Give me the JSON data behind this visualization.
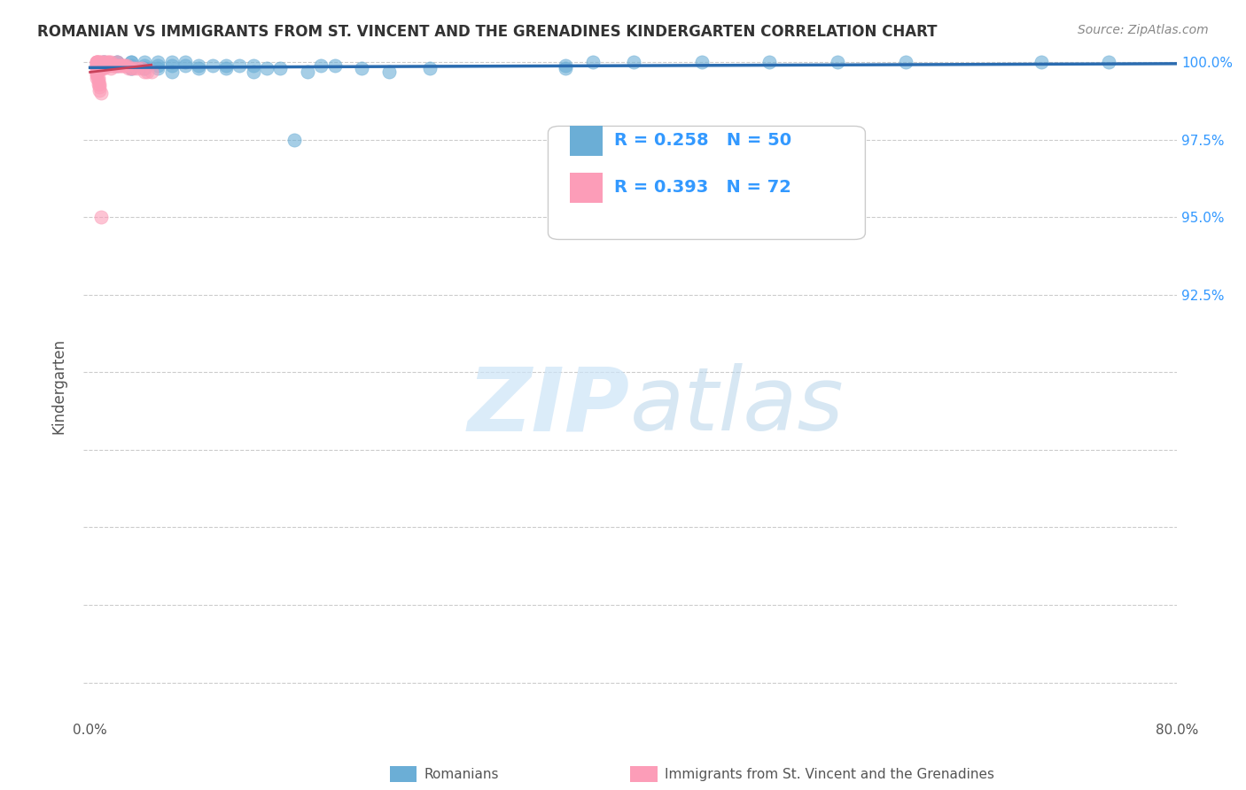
{
  "title": "ROMANIAN VS IMMIGRANTS FROM ST. VINCENT AND THE GRENADINES KINDERGARTEN CORRELATION CHART",
  "source": "Source: ZipAtlas.com",
  "xlabel": "",
  "ylabel": "Kindergarten",
  "xlim": [
    -0.005,
    0.8
  ],
  "ylim": [
    0.788,
    1.003
  ],
  "xticks": [
    0.0,
    0.1,
    0.2,
    0.3,
    0.4,
    0.5,
    0.6,
    0.7,
    0.8
  ],
  "xticklabels": [
    "0.0%",
    "",
    "",
    "",
    "",
    "",
    "",
    "",
    "80.0%"
  ],
  "yticks": [
    0.8,
    0.825,
    0.85,
    0.875,
    0.9,
    0.925,
    0.95,
    0.975,
    1.0
  ],
  "yticklabels": [
    "",
    "",
    "",
    "",
    "",
    "92.5%",
    "95.0%",
    "97.5%",
    "100.0%"
  ],
  "legend_label_blue": "Romanians",
  "legend_label_pink": "Immigrants from St. Vincent and the Grenadines",
  "R_blue": 0.258,
  "N_blue": 50,
  "R_pink": 0.393,
  "N_pink": 72,
  "blue_color": "#6baed6",
  "pink_color": "#fc9db8",
  "blue_line_color": "#2b6cb0",
  "pink_line_color": "#c9415a",
  "grid_color": "#cccccc",
  "background_color": "#ffffff",
  "watermark_zip": "ZIP",
  "watermark_atlas": "atlas",
  "blue_scatter_x": [
    0.02,
    0.02,
    0.02,
    0.03,
    0.03,
    0.03,
    0.04,
    0.04,
    0.05,
    0.05,
    0.05,
    0.06,
    0.06,
    0.06,
    0.07,
    0.07,
    0.08,
    0.08,
    0.09,
    0.1,
    0.1,
    0.11,
    0.12,
    0.12,
    0.13,
    0.14,
    0.15,
    0.16,
    0.17,
    0.18,
    0.2,
    0.22,
    0.25,
    0.01,
    0.01,
    0.01,
    0.03,
    0.03,
    0.04,
    0.04,
    0.35,
    0.35,
    0.37,
    0.4,
    0.45,
    0.5,
    0.55,
    0.6,
    0.7,
    0.75
  ],
  "blue_scatter_y": [
    1.0,
    1.0,
    0.999,
    1.0,
    0.999,
    0.998,
    1.0,
    0.998,
    1.0,
    0.999,
    0.998,
    1.0,
    0.999,
    0.997,
    1.0,
    0.999,
    0.999,
    0.998,
    0.999,
    0.999,
    0.998,
    0.999,
    0.999,
    0.997,
    0.998,
    0.998,
    0.975,
    0.997,
    0.999,
    0.999,
    0.998,
    0.997,
    0.998,
    1.0,
    1.0,
    0.999,
    1.0,
    0.998,
    0.999,
    0.998,
    0.999,
    0.998,
    1.0,
    1.0,
    1.0,
    1.0,
    1.0,
    1.0,
    1.0,
    1.0
  ],
  "pink_scatter_x": [
    0.005,
    0.005,
    0.005,
    0.005,
    0.005,
    0.005,
    0.005,
    0.005,
    0.005,
    0.005,
    0.006,
    0.006,
    0.006,
    0.006,
    0.006,
    0.007,
    0.007,
    0.007,
    0.007,
    0.008,
    0.008,
    0.008,
    0.009,
    0.009,
    0.009,
    0.01,
    0.01,
    0.01,
    0.011,
    0.011,
    0.012,
    0.012,
    0.013,
    0.013,
    0.014,
    0.014,
    0.015,
    0.015,
    0.016,
    0.017,
    0.018,
    0.019,
    0.02,
    0.02,
    0.021,
    0.022,
    0.023,
    0.024,
    0.025,
    0.026,
    0.027,
    0.028,
    0.03,
    0.032,
    0.035,
    0.038,
    0.04,
    0.042,
    0.045,
    0.005,
    0.005,
    0.005,
    0.005,
    0.005,
    0.006,
    0.006,
    0.006,
    0.007,
    0.007,
    0.007,
    0.008,
    0.008
  ],
  "pink_scatter_y": [
    1.0,
    1.0,
    1.0,
    1.0,
    0.999,
    0.999,
    0.999,
    0.999,
    0.998,
    0.998,
    1.0,
    1.0,
    0.999,
    0.999,
    0.998,
    1.0,
    0.999,
    0.999,
    0.998,
    1.0,
    0.999,
    0.998,
    1.0,
    0.999,
    0.998,
    1.0,
    0.999,
    0.998,
    1.0,
    0.999,
    1.0,
    0.999,
    1.0,
    0.999,
    1.0,
    0.999,
    1.0,
    0.998,
    0.999,
    0.999,
    0.999,
    0.999,
    1.0,
    0.999,
    0.999,
    0.999,
    0.999,
    0.999,
    0.999,
    0.999,
    0.999,
    0.998,
    0.998,
    0.998,
    0.998,
    0.998,
    0.997,
    0.997,
    0.997,
    0.997,
    0.997,
    0.996,
    0.996,
    0.995,
    0.995,
    0.994,
    0.993,
    0.993,
    0.992,
    0.991,
    0.99,
    0.95
  ]
}
